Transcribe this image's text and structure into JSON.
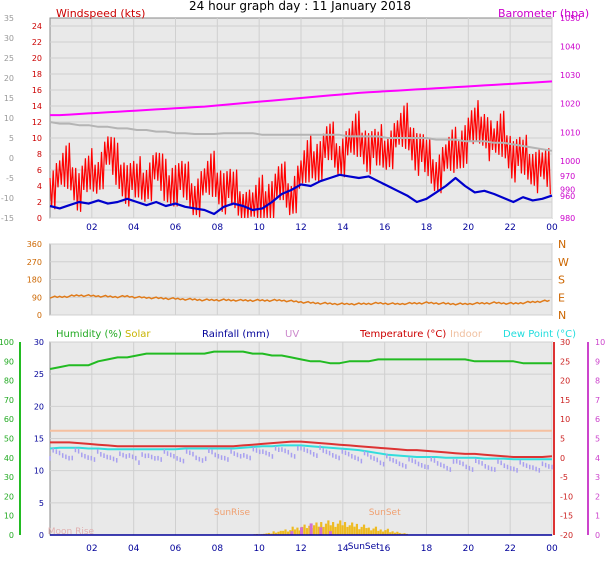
{
  "title": "24 hour graph day : 11 January 2018",
  "colors": {
    "wind": "#ff0000",
    "wind_avg": "#0000cc",
    "gust_grey": "#b4b4b4",
    "baro": "#ff00ff",
    "dir": "#e07b1a",
    "humidity": "#22bb22",
    "solar": "#f0b400",
    "rain": "#000099",
    "uv": "#cc44cc",
    "temp": "#dd3333",
    "indoor": "#f5c0a0",
    "dewpoint": "#33dddd",
    "plot_bg": "#e9e9e9"
  },
  "chart_data": [
    {
      "type": "line",
      "title": "",
      "xlabel": "",
      "x_ticks": [
        "02",
        "04",
        "06",
        "08",
        "10",
        "12",
        "14",
        "16",
        "18",
        "20",
        "22",
        "00"
      ],
      "left_axis": {
        "label": "Windspeed (kts)",
        "ticks": [
          0,
          2,
          4,
          6,
          8,
          10,
          12,
          14,
          16,
          18,
          20,
          22,
          24
        ],
        "ylim": [
          0,
          25
        ]
      },
      "right_axis": {
        "label": "Barometer (hpa)",
        "ticks": [
          980,
          990,
          1000,
          1010,
          1020,
          1030,
          1040,
          1050
        ],
        "ylim": [
          980,
          1050
        ]
      },
      "far_left_axis": {
        "ticks": [
          -15,
          -10,
          -5,
          0,
          5,
          10,
          15,
          20,
          25,
          30,
          35
        ]
      },
      "right_minor_ticks": [
        960,
        970
      ],
      "series": [
        {
          "name": "Windspeed (kts)",
          "axis": "left",
          "kind": "wind_gust",
          "values": [
            4,
            5,
            6,
            4,
            5,
            6,
            8,
            6,
            5,
            4,
            5,
            6,
            4,
            5,
            4,
            3,
            4,
            5,
            4,
            3,
            2,
            1,
            2,
            3,
            4,
            3,
            5,
            7,
            8,
            9,
            8,
            9,
            10,
            9,
            8,
            9,
            10,
            11,
            9,
            7,
            6,
            7,
            8,
            10,
            11,
            12,
            9,
            10,
            8,
            7,
            7,
            6,
            5
          ]
        },
        {
          "name": "Wind average",
          "axis": "left",
          "kind": "wind_avg",
          "values": [
            1.5,
            1.2,
            1.6,
            2.0,
            1.8,
            2.2,
            1.8,
            2.0,
            2.4,
            2.0,
            1.6,
            2.0,
            1.5,
            1.8,
            1.4,
            1.2,
            1.0,
            0.5,
            1.4,
            1.8,
            1.5,
            1.0,
            1.2,
            2.0,
            3.0,
            3.5,
            4.2,
            4.0,
            4.6,
            5.0,
            5.4,
            5.2,
            5.0,
            5.2,
            4.6,
            4.0,
            3.4,
            2.8,
            2.0,
            2.4,
            3.2,
            4.0,
            5.0,
            4.0,
            3.2,
            3.4,
            3.0,
            2.5,
            2.0,
            2.6,
            2.2,
            2.4,
            2.8
          ]
        },
        {
          "name": "Gust trace (grey)",
          "axis": "left",
          "kind": "grey",
          "values": [
            12,
            11.8,
            11.8,
            11.6,
            11.6,
            11.4,
            11.4,
            11.2,
            11.2,
            11.0,
            11.0,
            10.8,
            10.8,
            10.6,
            10.6,
            10.5,
            10.5,
            10.5,
            10.6,
            10.6,
            10.6,
            10.6,
            10.4,
            10.4,
            10.4,
            10.4,
            10.4,
            10.4,
            10.4,
            10.4,
            10.4,
            10.2,
            10.2,
            10.2,
            10.2,
            10.0,
            10.0,
            10.0,
            10.0,
            10.0,
            9.8,
            9.8,
            9.8,
            9.6,
            9.6,
            9.6,
            9.4,
            9.4,
            9.2,
            9.0,
            8.8,
            8.6,
            8.4
          ]
        },
        {
          "name": "Barometer (hpa)",
          "axis": "right",
          "kind": "baro",
          "values": [
            1016,
            1016,
            1016.2,
            1016.4,
            1016.6,
            1016.8,
            1017,
            1017.2,
            1017.4,
            1017.6,
            1017.8,
            1018,
            1018.2,
            1018.4,
            1018.6,
            1018.8,
            1019,
            1019.3,
            1019.6,
            1019.9,
            1020.2,
            1020.5,
            1020.8,
            1021.1,
            1021.4,
            1021.7,
            1022,
            1022.3,
            1022.6,
            1022.9,
            1023.2,
            1023.5,
            1023.8,
            1024,
            1024.2,
            1024.4,
            1024.6,
            1024.8,
            1025,
            1025.2,
            1025.4,
            1025.6,
            1025.8,
            1026,
            1026.2,
            1026.4,
            1026.6,
            1026.8,
            1027,
            1027.2,
            1027.4,
            1027.6,
            1027.8
          ]
        }
      ]
    },
    {
      "type": "line",
      "title": "",
      "xlabel": "",
      "left_axis": {
        "ticks": [
          0,
          90,
          180,
          270,
          360
        ],
        "ylim": [
          0,
          360
        ]
      },
      "right_axis": {
        "ticks": [
          "N",
          "E",
          "S",
          "W",
          "N"
        ]
      },
      "series": [
        {
          "name": "Wind direction",
          "values": [
            90,
            92,
            95,
            100,
            98,
            96,
            94,
            92,
            95,
            90,
            88,
            86,
            84,
            82,
            80,
            78,
            76,
            76,
            76,
            75,
            74,
            74,
            74,
            74,
            74,
            70,
            66,
            62,
            60,
            58,
            56,
            56,
            56,
            58,
            60,
            58,
            56,
            58,
            60,
            62,
            60,
            58,
            56,
            56,
            58,
            60,
            62,
            60,
            58,
            62,
            66,
            70,
            72
          ]
        }
      ]
    },
    {
      "type": "line",
      "title": "",
      "xlabel": "",
      "x_ticks": [
        "02",
        "04",
        "06",
        "08",
        "10",
        "12",
        "14",
        "16",
        "18",
        "20",
        "22",
        "00"
      ],
      "legend": [
        "Humidity (%)",
        "Solar",
        "Rainfall (mm)",
        "UV",
        "Temperature (°C)",
        "Indoor",
        "Dew Point (°C)"
      ],
      "far_left_axis": {
        "label": "Humidity",
        "ticks": [
          0,
          10,
          20,
          30,
          40,
          50,
          60,
          70,
          80,
          90,
          100
        ],
        "ylim": [
          0,
          100
        ]
      },
      "left_axis": {
        "label": "Rainfall",
        "ticks": [
          0,
          5,
          10,
          15,
          20,
          25,
          30
        ],
        "ylim": [
          0,
          30
        ]
      },
      "right_axis": {
        "label": "Temperature",
        "ticks": [
          -20,
          -15,
          -10,
          -5,
          0,
          5,
          10,
          15,
          20,
          25,
          30
        ],
        "ylim": [
          -20,
          30
        ]
      },
      "far_right_axis": {
        "label": "UV",
        "ticks": [
          0,
          1,
          2,
          3,
          4,
          5,
          6,
          7,
          8,
          9,
          10
        ],
        "ylim": [
          0,
          10
        ]
      },
      "annotations": [
        {
          "text": "SunRise",
          "x": 8.7
        },
        {
          "text": "SunSet",
          "x": 16.0
        },
        {
          "text": "Moon Rise",
          "x": 1.0
        },
        {
          "text": "SunSet",
          "x": 15.0
        }
      ],
      "series": [
        {
          "name": "Humidity (%)",
          "axis": "far_left",
          "values": [
            86,
            87,
            88,
            88,
            88,
            90,
            91,
            92,
            92,
            93,
            94,
            94,
            94,
            94,
            94,
            94,
            94,
            95,
            95,
            95,
            95,
            94,
            94,
            93,
            93,
            92,
            91,
            90,
            90,
            89,
            89,
            90,
            90,
            90,
            91,
            91,
            91,
            91,
            91,
            91,
            91,
            91,
            91,
            91,
            90,
            90,
            90,
            90,
            90,
            89,
            89,
            89,
            89
          ]
        },
        {
          "name": "Indoor",
          "axis": "right",
          "values": [
            7,
            7,
            7,
            7,
            7,
            7,
            7,
            7,
            7,
            7,
            7,
            7,
            7,
            7,
            7,
            7,
            7,
            7,
            7,
            7,
            7,
            7,
            7,
            7,
            7,
            7,
            7,
            7,
            7,
            7,
            7,
            7,
            7,
            7,
            7,
            7,
            7,
            7,
            7,
            7,
            7,
            7,
            7,
            7,
            7,
            7,
            7,
            7,
            7,
            7,
            7,
            7,
            7
          ]
        },
        {
          "name": "Temperature (°C)",
          "axis": "right",
          "values": [
            4,
            4,
            4,
            3.8,
            3.6,
            3.4,
            3.2,
            3,
            3,
            3,
            3,
            3,
            3,
            3,
            3,
            3,
            3,
            3,
            3,
            3,
            3.2,
            3.4,
            3.6,
            3.8,
            4,
            4.2,
            4.2,
            4,
            3.8,
            3.6,
            3.4,
            3.2,
            3,
            2.8,
            2.6,
            2.4,
            2.2,
            2,
            2,
            1.8,
            1.6,
            1.4,
            1.2,
            1,
            1,
            0.8,
            0.6,
            0.4,
            0.2,
            0.2,
            0.2,
            0.2,
            0.4
          ]
        },
        {
          "name": "Dew Point (°C)",
          "axis": "right",
          "values": [
            2.4,
            2.6,
            2.6,
            2.6,
            2.4,
            2.4,
            2.2,
            2.2,
            2.2,
            2.2,
            2.2,
            2.2,
            2.2,
            2.2,
            2.4,
            2.4,
            2.4,
            2.4,
            2.4,
            2.4,
            2.6,
            2.8,
            3,
            3,
            3.2,
            3.2,
            3.2,
            3,
            2.8,
            2.6,
            2.4,
            2.2,
            2,
            1.6,
            1.2,
            0.8,
            0.6,
            0.4,
            0.2,
            0.2,
            0.2,
            0,
            0,
            0,
            0,
            -0.2,
            -0.2,
            -0.2,
            -0.4,
            -0.4,
            -0.4,
            -0.4,
            -0.4
          ]
        },
        {
          "name": "Dew Point scatter",
          "axis": "right",
          "values": [
            1.5,
            1.2,
            1.6,
            1.0,
            1.2,
            0.8,
            1.0,
            0.6,
            1.2,
            0.4,
            0.8,
            1.2,
            1.0,
            0.8,
            1.2,
            0.6,
            1.4,
            1.0,
            1.2,
            1.0,
            1.6,
            1.8,
            2.2,
            2.0,
            2.4,
            2.0,
            2.4,
            2.2,
            1.8,
            1.6,
            1.2,
            1.0,
            0.8,
            0.4,
            0.0,
            -0.4,
            -0.6,
            -0.8,
            -1.0,
            -0.8,
            -1.2,
            -1.4,
            -1.0,
            -1.4,
            -1.2,
            -1.6,
            -1.4,
            -1.8,
            -1.6,
            -1.8,
            -1.6,
            -2.0,
            -1.8
          ]
        },
        {
          "name": "Solar",
          "axis": "far_left",
          "values": [
            0,
            0,
            0,
            0,
            0,
            0,
            0,
            0,
            0,
            0,
            0,
            0,
            0,
            0,
            0,
            0,
            0,
            0,
            0,
            0,
            0,
            0.5,
            1,
            2,
            3,
            4,
            5,
            6,
            7,
            7,
            7,
            6,
            5,
            4,
            3,
            2,
            1,
            0,
            0,
            0,
            0,
            0,
            0,
            0,
            0,
            0,
            0,
            0,
            0,
            0,
            0,
            0,
            0
          ]
        },
        {
          "name": "UV",
          "axis": "far_right",
          "values": [
            0,
            0,
            0,
            0,
            0,
            0,
            0,
            0,
            0,
            0,
            0,
            0,
            0,
            0,
            0,
            0,
            0,
            0,
            0,
            0,
            0,
            0,
            0,
            0,
            0,
            0.2,
            0.4,
            0.6,
            0.4,
            0.2,
            0,
            0,
            0,
            0,
            0,
            0,
            0,
            0,
            0,
            0,
            0,
            0,
            0,
            0,
            0,
            0,
            0,
            0,
            0,
            0,
            0,
            0,
            0
          ]
        },
        {
          "name": "Rainfall (mm)",
          "axis": "left",
          "values": [
            0,
            0,
            0,
            0,
            0,
            0,
            0,
            0,
            0,
            0,
            0,
            0,
            0,
            0,
            0,
            0,
            0,
            0,
            0,
            0,
            0,
            0,
            0,
            0,
            0,
            0,
            0,
            0,
            0,
            0,
            0,
            0,
            0,
            0,
            0,
            0,
            0,
            0,
            0,
            0,
            0,
            0,
            0,
            0,
            0,
            0,
            0,
            0,
            0,
            0,
            0,
            0,
            0
          ]
        }
      ]
    }
  ]
}
